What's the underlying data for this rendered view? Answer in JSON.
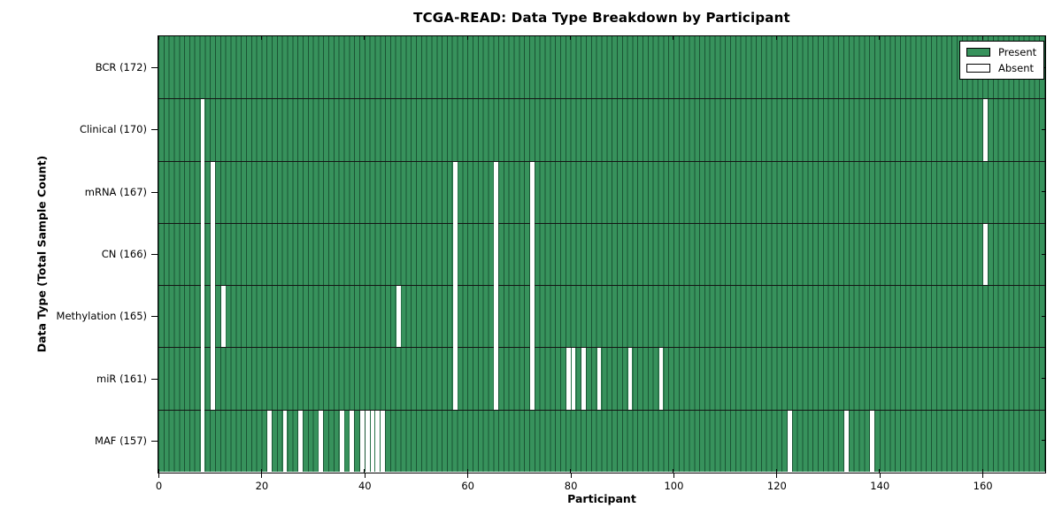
{
  "chart_data": {
    "type": "heatmap",
    "title": "TCGA-READ: Data Type Breakdown by Participant",
    "xlabel": "Participant",
    "ylabel": "Data Type (Total Sample Count)",
    "n_participants": 172,
    "xlim": [
      0,
      172
    ],
    "x_ticks": [
      "0",
      "20",
      "40",
      "60",
      "80",
      "100",
      "120",
      "140",
      "160"
    ],
    "x_tick_values": [
      0,
      20,
      40,
      60,
      80,
      100,
      120,
      140,
      160
    ],
    "grid": false,
    "legend": {
      "position": "upper right",
      "entries": [
        {
          "label": "Present",
          "key": "present",
          "color": "#37925c"
        },
        {
          "label": "Absent",
          "key": "absent",
          "color": "#ffffff"
        }
      ]
    },
    "colors": {
      "present": "#37925c",
      "absent": "#ffffff",
      "cell_line": "#1a5434",
      "row_line": "#141414",
      "axis": "#000000"
    },
    "rows": [
      {
        "label": "BCR (172)",
        "data_type": "BCR",
        "total": 172,
        "absent_participants": []
      },
      {
        "label": "Clinical (170)",
        "data_type": "Clinical",
        "total": 170,
        "absent_participants": [
          8,
          160
        ]
      },
      {
        "label": "mRNA (167)",
        "data_type": "mRNA",
        "total": 167,
        "absent_participants": [
          8,
          10,
          57,
          65,
          72
        ]
      },
      {
        "label": "CN (166)",
        "data_type": "CN",
        "total": 166,
        "absent_participants": [
          8,
          10,
          57,
          65,
          72,
          160
        ]
      },
      {
        "label": "Methylation (165)",
        "data_type": "Methylation",
        "total": 165,
        "absent_participants": [
          8,
          10,
          12,
          46,
          57,
          65,
          72
        ]
      },
      {
        "label": "miR (161)",
        "data_type": "miR",
        "total": 161,
        "absent_participants": [
          8,
          10,
          57,
          65,
          72,
          79,
          80,
          82,
          85,
          91,
          97
        ]
      },
      {
        "label": "MAF (157)",
        "data_type": "MAF",
        "total": 157,
        "absent_participants": [
          8,
          21,
          24,
          27,
          31,
          35,
          37,
          39,
          40,
          41,
          42,
          43,
          122,
          133,
          138
        ]
      }
    ]
  }
}
